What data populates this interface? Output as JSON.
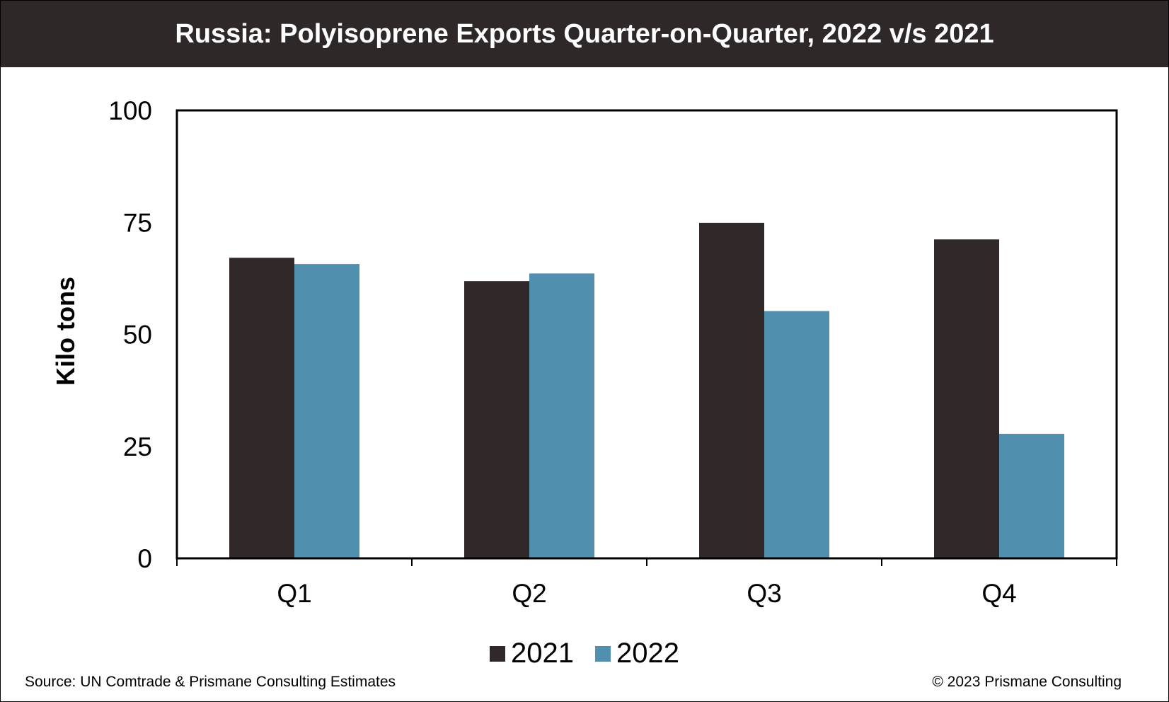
{
  "chart_data": {
    "type": "bar",
    "title": "Russia: Polyisoprene Exports Quarter-on-Quarter, 2022 v/s 2021",
    "xlabel": "",
    "ylabel": "Kilo tons",
    "ylim": [
      0,
      100
    ],
    "yticks": [
      0,
      25,
      50,
      75,
      100
    ],
    "grid": false,
    "legend_position": "bottom",
    "categories": [
      "Q1",
      "Q2",
      "Q3",
      "Q4"
    ],
    "series": [
      {
        "name": "2021",
        "color": "#302829",
        "values": [
          67.1,
          61.9,
          74.9,
          71.2
        ]
      },
      {
        "name": "2022",
        "color": "#5090ae",
        "values": [
          65.7,
          63.6,
          55.2,
          27.8
        ]
      }
    ]
  },
  "footer": {
    "source": "Source: UN Comtrade & Prismane Consulting Estimates",
    "copyright": "© 2023 Prismane Consulting"
  }
}
